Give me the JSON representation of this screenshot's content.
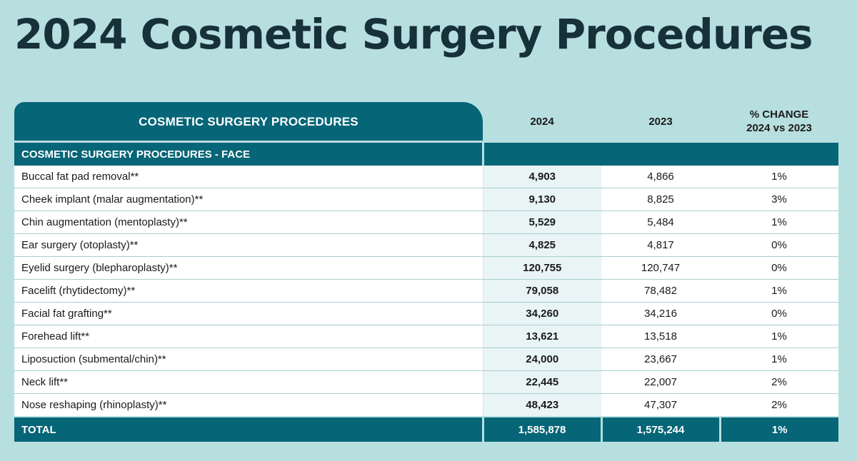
{
  "title": "2024 Cosmetic Surgery Procedures",
  "chart_data": {
    "type": "table",
    "columns": [
      "COSMETIC SURGERY PROCEDURES",
      "2024",
      "2023",
      "% CHANGE 2024 vs 2023"
    ],
    "header": {
      "name": "COSMETIC SURGERY PROCEDURES",
      "y2024": "2024",
      "y2023": "2023",
      "change_line1": "% CHANGE",
      "change_line2": "2024 vs 2023"
    },
    "section": "COSMETIC SURGERY PROCEDURES - FACE",
    "rows": [
      {
        "name": "Buccal fat pad removal**",
        "y2024": "4,903",
        "y2023": "4,866",
        "change": "1%"
      },
      {
        "name": "Cheek implant (malar augmentation)**",
        "y2024": "9,130",
        "y2023": "8,825",
        "change": "3%"
      },
      {
        "name": "Chin augmentation (mentoplasty)**",
        "y2024": "5,529",
        "y2023": "5,484",
        "change": "1%"
      },
      {
        "name": "Ear surgery (otoplasty)**",
        "y2024": "4,825",
        "y2023": "4,817",
        "change": "0%"
      },
      {
        "name": "Eyelid surgery (blepharoplasty)**",
        "y2024": "120,755",
        "y2023": "120,747",
        "change": "0%"
      },
      {
        "name": "Facelift (rhytidectomy)**",
        "y2024": "79,058",
        "y2023": "78,482",
        "change": "1%"
      },
      {
        "name": "Facial fat grafting**",
        "y2024": "34,260",
        "y2023": "34,216",
        "change": "0%"
      },
      {
        "name": "Forehead lift**",
        "y2024": "13,621",
        "y2023": "13,518",
        "change": "1%"
      },
      {
        "name": "Liposuction (submental/chin)**",
        "y2024": "24,000",
        "y2023": "23,667",
        "change": "1%"
      },
      {
        "name": "Neck lift**",
        "y2024": "22,445",
        "y2023": "22,007",
        "change": "2%"
      },
      {
        "name": "Nose reshaping (rhinoplasty)**",
        "y2024": "48,423",
        "y2023": "47,307",
        "change": "2%"
      }
    ],
    "total": {
      "name": "TOTAL",
      "y2024": "1,585,878",
      "y2023": "1,575,244",
      "change": "1%"
    }
  },
  "colors": {
    "background": "#b8dfe0",
    "header_teal": "#066577",
    "title_text": "#17313a",
    "highlight_column": "#e9f4f5"
  }
}
